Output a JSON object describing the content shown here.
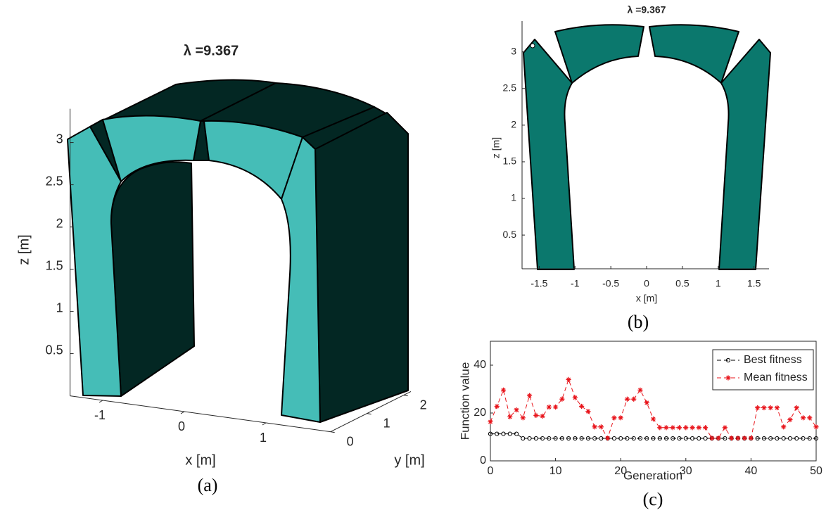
{
  "chart_data": [
    {
      "type": "arch3d",
      "title": "λ =9.367",
      "caption": "(a)",
      "xlabel": "x [m]",
      "ylabel": "y [m]",
      "zlabel": "z [m]",
      "xlim": [
        -1.4,
        1.79
      ],
      "ylim": [
        0,
        2.2
      ],
      "zlim": [
        0,
        3.4
      ],
      "xticks": [
        -1,
        0,
        1
      ],
      "yticks": [
        0,
        1,
        2
      ],
      "zticks": [
        0.5,
        1,
        1.5,
        2,
        2.5,
        3
      ]
    },
    {
      "type": "arch2d",
      "title": "λ =9.367",
      "caption": "(b)",
      "xlabel": "x [m]",
      "ylabel": "z [m]",
      "xlim": [
        -1.74,
        1.71
      ],
      "ylim": [
        0.04,
        3.42
      ],
      "xticks": [
        -1.5,
        -1,
        -0.5,
        0,
        0.5,
        1,
        1.5
      ],
      "yticks": [
        0.5,
        1,
        1.5,
        2,
        2.5,
        3
      ]
    },
    {
      "type": "line",
      "caption": "(c)",
      "xlabel": "Generation",
      "ylabel": "Function value",
      "legend": "upper right",
      "xlim": [
        0,
        50
      ],
      "ylim": [
        0,
        50
      ],
      "xticks": [
        0,
        10,
        20,
        30,
        40,
        50
      ],
      "yticks": [
        0,
        20,
        40
      ],
      "x": [
        0,
        1,
        2,
        3,
        4,
        5,
        6,
        7,
        8,
        9,
        10,
        11,
        12,
        13,
        14,
        15,
        16,
        17,
        18,
        19,
        20,
        21,
        22,
        23,
        24,
        25,
        26,
        27,
        28,
        29,
        30,
        31,
        32,
        33,
        34,
        35,
        36,
        37,
        38,
        39,
        40,
        41,
        42,
        43,
        44,
        45,
        46,
        47,
        48,
        49,
        50
      ],
      "series": [
        {
          "name": "Best fitness",
          "color": "#000000",
          "marker": "circle",
          "values": [
            11.3,
            11.3,
            11.3,
            11.3,
            11.3,
            9.4,
            9.4,
            9.4,
            9.4,
            9.4,
            9.4,
            9.4,
            9.4,
            9.4,
            9.4,
            9.4,
            9.4,
            9.4,
            9.4,
            9.4,
            9.4,
            9.4,
            9.4,
            9.4,
            9.4,
            9.4,
            9.4,
            9.4,
            9.4,
            9.4,
            9.4,
            9.4,
            9.4,
            9.4,
            9.4,
            9.4,
            9.4,
            9.4,
            9.4,
            9.4,
            9.4,
            9.4,
            9.4,
            9.4,
            9.4,
            9.4,
            9.4,
            9.4,
            9.4,
            9.4,
            9.4
          ]
        },
        {
          "name": "Mean fitness",
          "color": "#e8141b",
          "marker": "star",
          "values": [
            16.3,
            22.8,
            29.6,
            18.4,
            21.3,
            18,
            27.3,
            19,
            18.7,
            22.5,
            22.5,
            25.8,
            34,
            26.4,
            22.8,
            20.7,
            14.2,
            14.2,
            9.5,
            18,
            18,
            25.8,
            25.8,
            29.6,
            24.3,
            17.5,
            13.9,
            13.9,
            13.9,
            13.9,
            13.9,
            13.9,
            13.9,
            13.9,
            9.5,
            9.5,
            13.9,
            9.5,
            9.5,
            9.5,
            9.5,
            22.2,
            22.2,
            22.2,
            22.2,
            14.2,
            17.2,
            22.2,
            18,
            18,
            14.2
          ]
        }
      ]
    }
  ]
}
